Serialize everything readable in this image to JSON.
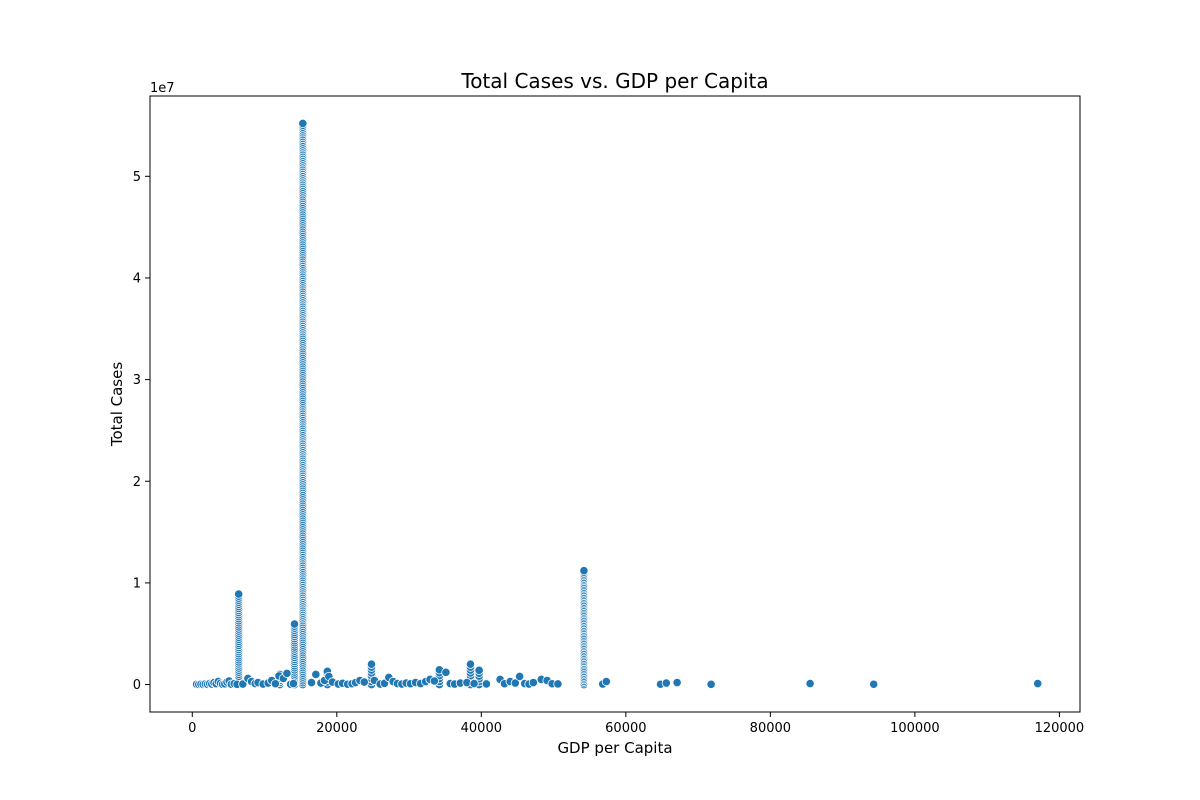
{
  "chart_data": {
    "type": "scatter",
    "title": "Total Cases vs. GDP per Capita",
    "xlabel": "GDP per Capita",
    "ylabel": "Total Cases",
    "y_offset_label": "1e7",
    "xlim": [
      -5850,
      122850
    ],
    "ylim": [
      -2700000,
      57900000
    ],
    "x_ticks": [
      0,
      20000,
      40000,
      60000,
      80000,
      100000,
      120000
    ],
    "x_tick_labels": [
      "0",
      "20000",
      "40000",
      "60000",
      "80000",
      "100000",
      "120000"
    ],
    "y_ticks": [
      0,
      10000000,
      20000000,
      30000000,
      40000000,
      50000000
    ],
    "y_tick_labels": [
      "0",
      "1",
      "2",
      "3",
      "4",
      "5"
    ],
    "grid": false,
    "marker_color": "#1f77b4",
    "series": [
      {
        "columns": [
          {
            "x": 6425,
            "y_min": 0,
            "y_max": 8900000,
            "count": 45
          },
          {
            "x": 14150,
            "y_min": 0,
            "y_max": 5950000,
            "count": 30
          },
          {
            "x": 15300,
            "y_min": 0,
            "y_max": 55200000,
            "count": 300
          },
          {
            "x": 54200,
            "y_min": 0,
            "y_max": 11200000,
            "count": 70
          },
          {
            "x": 12100,
            "y_min": 0,
            "y_max": 1000000,
            "count": 6
          },
          {
            "x": 24800,
            "y_min": 0,
            "y_max": 2000000,
            "count": 8
          },
          {
            "x": 38500,
            "y_min": 0,
            "y_max": 2000000,
            "count": 8
          },
          {
            "x": 34200,
            "y_min": 0,
            "y_max": 1450000,
            "count": 6
          },
          {
            "x": 39700,
            "y_min": 0,
            "y_max": 1400000,
            "count": 6
          },
          {
            "x": 18700,
            "y_min": 0,
            "y_max": 1300000,
            "count": 6
          }
        ],
        "points": [
          [
            600,
            30000
          ],
          [
            900,
            15000
          ],
          [
            1200,
            40000
          ],
          [
            1500,
            10000
          ],
          [
            1800,
            60000
          ],
          [
            2100,
            25000
          ],
          [
            2400,
            100000
          ],
          [
            2700,
            50000
          ],
          [
            3000,
            180000
          ],
          [
            3300,
            80000
          ],
          [
            3600,
            300000
          ],
          [
            3900,
            120000
          ],
          [
            4200,
            20000
          ],
          [
            4500,
            70000
          ],
          [
            4800,
            250000
          ],
          [
            5100,
            350000
          ],
          [
            5400,
            40000
          ],
          [
            5800,
            90000
          ],
          [
            6200,
            20000
          ],
          [
            7000,
            50000
          ],
          [
            7700,
            600000
          ],
          [
            8200,
            300000
          ],
          [
            8700,
            100000
          ],
          [
            9100,
            200000
          ],
          [
            9800,
            50000
          ],
          [
            10500,
            150000
          ],
          [
            11000,
            400000
          ],
          [
            11500,
            80000
          ],
          [
            12000,
            850000
          ],
          [
            12600,
            600000
          ],
          [
            13100,
            1100000
          ],
          [
            13600,
            30000
          ],
          [
            14000,
            100000
          ],
          [
            16500,
            200000
          ],
          [
            17100,
            1000000
          ],
          [
            17800,
            150000
          ],
          [
            18300,
            400000
          ],
          [
            18900,
            800000
          ],
          [
            19400,
            250000
          ],
          [
            20200,
            50000
          ],
          [
            20800,
            120000
          ],
          [
            21500,
            30000
          ],
          [
            22100,
            80000
          ],
          [
            22600,
            200000
          ],
          [
            23200,
            400000
          ],
          [
            23800,
            250000
          ],
          [
            25200,
            400000
          ],
          [
            26000,
            50000
          ],
          [
            26600,
            120000
          ],
          [
            27200,
            700000
          ],
          [
            27800,
            300000
          ],
          [
            28400,
            100000
          ],
          [
            29000,
            50000
          ],
          [
            29600,
            150000
          ],
          [
            30200,
            80000
          ],
          [
            30900,
            200000
          ],
          [
            31600,
            100000
          ],
          [
            32300,
            300000
          ],
          [
            32900,
            500000
          ],
          [
            33500,
            350000
          ],
          [
            35100,
            1200000
          ],
          [
            35700,
            100000
          ],
          [
            36300,
            50000
          ],
          [
            37100,
            150000
          ],
          [
            38000,
            200000
          ],
          [
            39000,
            100000
          ],
          [
            40700,
            60000
          ],
          [
            42600,
            500000
          ],
          [
            43200,
            80000
          ],
          [
            44000,
            300000
          ],
          [
            44700,
            150000
          ],
          [
            45300,
            800000
          ],
          [
            46000,
            100000
          ],
          [
            46600,
            50000
          ],
          [
            47200,
            200000
          ],
          [
            48300,
            500000
          ],
          [
            49100,
            400000
          ],
          [
            49800,
            80000
          ],
          [
            50600,
            60000
          ],
          [
            56800,
            50000
          ],
          [
            57300,
            300000
          ],
          [
            64800,
            30000
          ],
          [
            65600,
            150000
          ],
          [
            67100,
            200000
          ],
          [
            71800,
            20000
          ],
          [
            85500,
            100000
          ],
          [
            94300,
            30000
          ],
          [
            117000,
            100000
          ]
        ]
      }
    ]
  }
}
